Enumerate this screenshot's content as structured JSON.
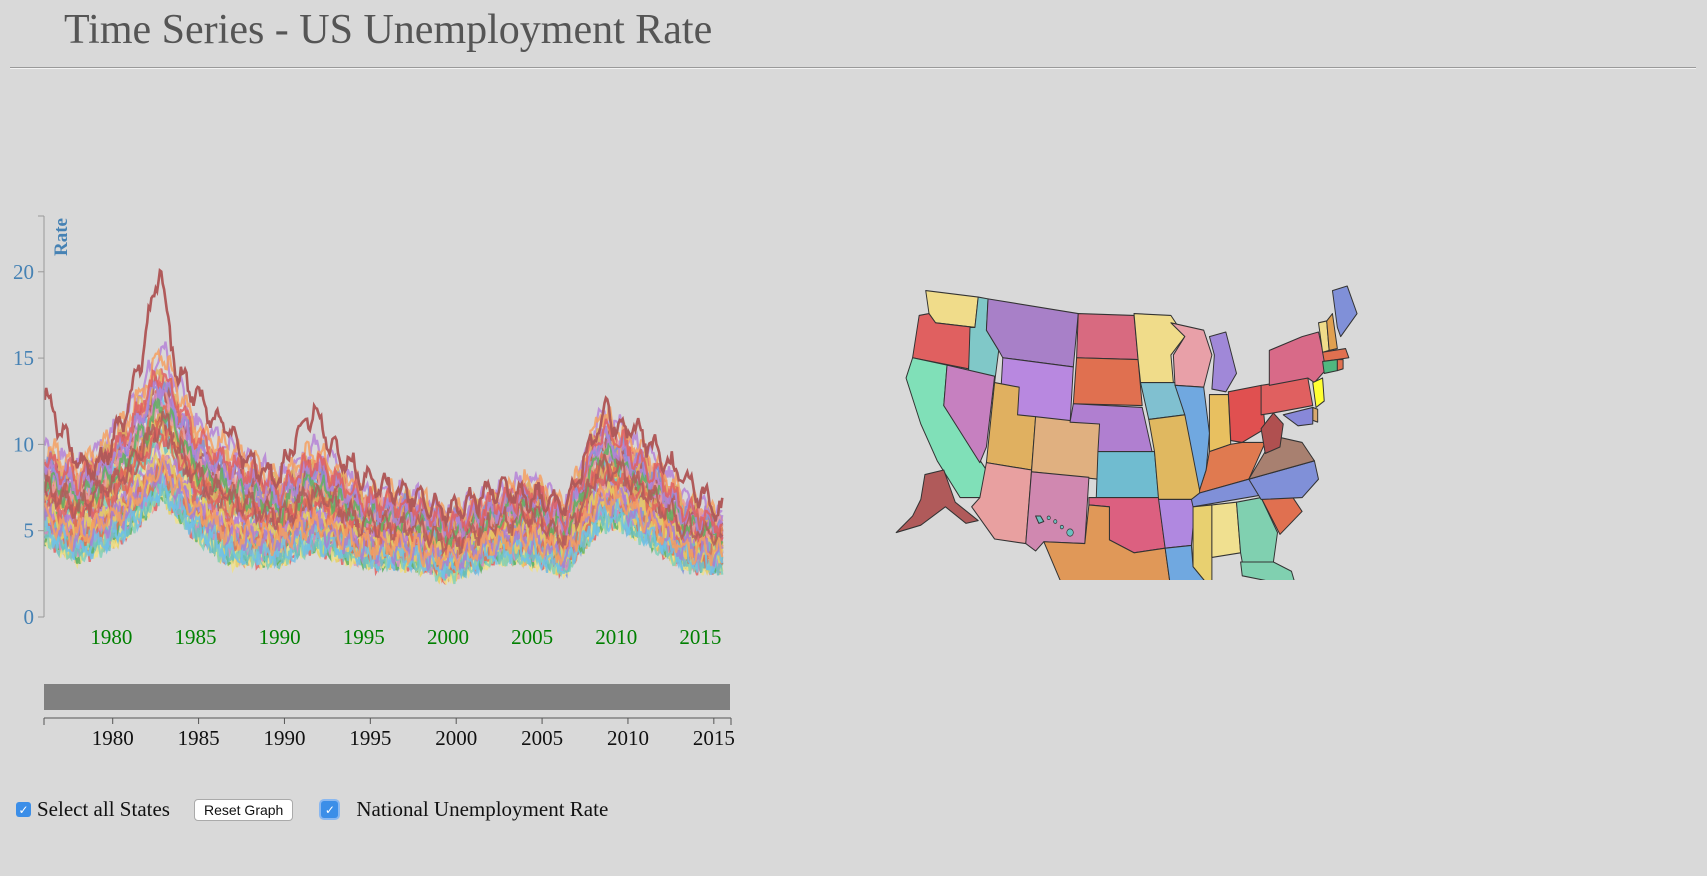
{
  "page": {
    "title": "Time Series - US Unemployment Rate"
  },
  "controls": {
    "select_all_label": "Select all States",
    "select_all_checked": true,
    "reset_label": "Reset Graph",
    "national_label": "National Unemployment Rate",
    "national_checked": true
  },
  "colors": {
    "axis_y": "#4682b4",
    "axis_x": "#008000",
    "brush": "#808080",
    "highlight": "#ffff33",
    "palette": [
      "#b05a5a",
      "#b583d6",
      "#e06060",
      "#f0e08a",
      "#e8a0a0",
      "#80d0b8",
      "#e0b060",
      "#d088c0",
      "#8090d8",
      "#6cc0c0",
      "#e07050",
      "#e8d060",
      "#70c0e8",
      "#60b060",
      "#a87fcf",
      "#f4a060"
    ]
  },
  "chart_data": {
    "type": "line",
    "ylabel": "Rate",
    "ylim": [
      0,
      23
    ],
    "xlim": [
      1978,
      2016
    ],
    "y_ticks": [
      0,
      5,
      10,
      15,
      20
    ],
    "x_ticks": [
      1980,
      1985,
      1990,
      1995,
      2000,
      2005,
      2010,
      2015
    ],
    "series_count": 51,
    "series_envelope": {
      "note_x": [
        1976,
        1978,
        1980,
        1981,
        1983,
        1985,
        1987,
        1990,
        1992,
        1995,
        1998,
        2000,
        2003,
        2005,
        2007,
        2009,
        2010,
        2012,
        2014,
        2016
      ],
      "max_y": [
        13,
        11.5,
        14,
        15.5,
        20.5,
        14.5,
        13.5,
        10.5,
        13,
        9.5,
        9,
        8,
        9,
        10.5,
        8,
        15.5,
        14,
        12,
        9,
        7.5
      ],
      "min_y": [
        3.5,
        2.5,
        3,
        3.5,
        5,
        3.5,
        2,
        2.5,
        3,
        2.5,
        2.5,
        1.8,
        3,
        2.5,
        2.2,
        4,
        4.5,
        3.5,
        2.5,
        2.5
      ]
    },
    "brush": {
      "x_ticks": [
        1980,
        1985,
        1990,
        1995,
        2000,
        2005,
        2010,
        2015
      ],
      "xlim": [
        1976,
        2016
      ]
    }
  },
  "map": {
    "highlighted_state": "New Jersey",
    "states": [
      "Washington",
      "Oregon",
      "California",
      "Idaho",
      "Nevada",
      "Montana",
      "Wyoming",
      "Utah",
      "Arizona",
      "Colorado",
      "New Mexico",
      "North Dakota",
      "South Dakota",
      "Nebraska",
      "Kansas",
      "Oklahoma",
      "Texas",
      "Minnesota",
      "Iowa",
      "Missouri",
      "Arkansas",
      "Louisiana",
      "Wisconsin",
      "Illinois",
      "Michigan",
      "Indiana",
      "Ohio",
      "Kentucky",
      "Tennessee",
      "Mississippi",
      "Alabama",
      "Georgia",
      "Florida",
      "South Carolina",
      "North Carolina",
      "Virginia",
      "West Virginia",
      "Pennsylvania",
      "New York",
      "Vermont",
      "New Hampshire",
      "Maine",
      "Massachusetts",
      "Connecticut",
      "Rhode Island",
      "New Jersey",
      "Delaware",
      "Maryland",
      "Alaska",
      "Hawaii"
    ]
  }
}
